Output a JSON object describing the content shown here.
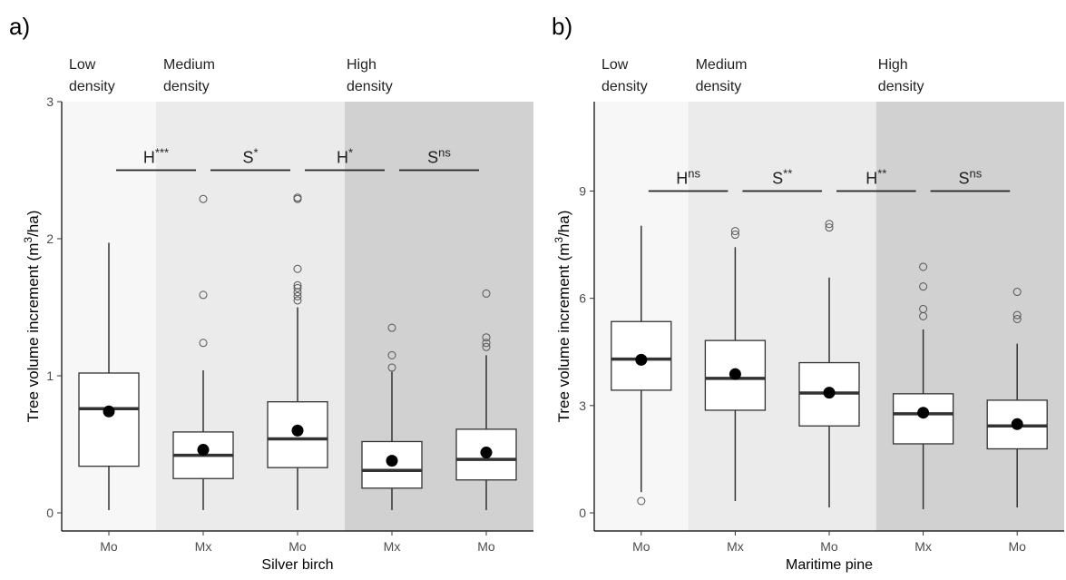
{
  "chart_data": [
    {
      "panel_label": "a)",
      "type": "box",
      "xlabel": "Silver birch",
      "ylabel": "Tree volume increment (m³/ha)",
      "ylabel_parts": {
        "pre": "Tree volume increment (m",
        "sup": "3",
        "post": "/ha)"
      },
      "ylim": [
        0,
        3
      ],
      "yticks": [
        "0",
        "1",
        "2",
        "3"
      ],
      "ytick_values": [
        0,
        1,
        2,
        3
      ],
      "categories": [
        "Mo",
        "Mx",
        "Mo",
        "Mx",
        "Mo"
      ],
      "density_zones": [
        {
          "line1": "Low",
          "line2": "density",
          "color": "#f7f7f7",
          "from": 0,
          "to": 1
        },
        {
          "line1": "Medium",
          "line2": "density",
          "color": "#ebebeb",
          "from": 1,
          "to": 3
        },
        {
          "line1": "High",
          "line2": "density",
          "color": "#d1d1d1",
          "from": 3,
          "to": 5
        }
      ],
      "boxes": [
        {
          "q1": 0.34,
          "median": 0.76,
          "q3": 1.02,
          "lower": 0.02,
          "upper": 1.97,
          "mean": 0.74,
          "outliers": []
        },
        {
          "q1": 0.25,
          "median": 0.42,
          "q3": 0.59,
          "lower": 0.02,
          "upper": 1.04,
          "mean": 0.46,
          "outliers": [
            1.24,
            1.59,
            2.29
          ]
        },
        {
          "q1": 0.33,
          "median": 0.54,
          "q3": 0.81,
          "lower": 0.02,
          "upper": 1.5,
          "mean": 0.6,
          "outliers": [
            1.55,
            1.58,
            1.61,
            1.64,
            1.66,
            1.78,
            2.29,
            2.3
          ]
        },
        {
          "q1": 0.18,
          "median": 0.31,
          "q3": 0.52,
          "lower": 0.02,
          "upper": 1.03,
          "mean": 0.38,
          "outliers": [
            1.06,
            1.15,
            1.35
          ]
        },
        {
          "q1": 0.24,
          "median": 0.39,
          "q3": 0.61,
          "lower": 0.02,
          "upper": 1.15,
          "mean": 0.44,
          "outliers": [
            1.21,
            1.24,
            1.28,
            1.6
          ]
        }
      ],
      "significance": [
        {
          "label": "H",
          "sup": "***",
          "y": 2.5
        },
        {
          "label": "S",
          "sup": "*",
          "y": 2.5
        },
        {
          "label": "H",
          "sup": "*",
          "y": 2.5
        },
        {
          "label": "S",
          "sup": "ns",
          "y": 2.5
        }
      ]
    },
    {
      "panel_label": "b)",
      "type": "box",
      "xlabel": "Maritime pine",
      "ylabel": "Tree volume increment (m³/ha)",
      "ylabel_parts": {
        "pre": "Tree volume increment (m",
        "sup": "3",
        "post": "/ha)"
      },
      "ylim": [
        0,
        11.5
      ],
      "yticks": [
        "0",
        "3",
        "6",
        "9"
      ],
      "ytick_values": [
        0,
        3,
        6,
        9
      ],
      "categories": [
        "Mo",
        "Mx",
        "Mo",
        "Mx",
        "Mo"
      ],
      "density_zones": [
        {
          "line1": "Low",
          "line2": "density",
          "color": "#f7f7f7",
          "from": 0,
          "to": 1
        },
        {
          "line1": "Medium",
          "line2": "density",
          "color": "#ebebeb",
          "from": 1,
          "to": 3
        },
        {
          "line1": "High",
          "line2": "density",
          "color": "#d1d1d1",
          "from": 3,
          "to": 5
        }
      ],
      "boxes": [
        {
          "q1": 3.43,
          "median": 4.3,
          "q3": 5.35,
          "lower": 0.58,
          "upper": 8.03,
          "mean": 4.28,
          "outliers": [
            0.33
          ]
        },
        {
          "q1": 2.87,
          "median": 3.76,
          "q3": 4.82,
          "lower": 0.33,
          "upper": 7.43,
          "mean": 3.88,
          "outliers": [
            7.78,
            7.88
          ]
        },
        {
          "q1": 2.43,
          "median": 3.35,
          "q3": 4.2,
          "lower": 0.15,
          "upper": 6.58,
          "mean": 3.36,
          "outliers": [
            7.98,
            8.08
          ]
        },
        {
          "q1": 1.93,
          "median": 2.77,
          "q3": 3.33,
          "lower": 0.1,
          "upper": 5.13,
          "mean": 2.8,
          "outliers": [
            5.5,
            5.7,
            6.33,
            6.88
          ]
        },
        {
          "q1": 1.79,
          "median": 2.43,
          "q3": 3.15,
          "lower": 0.15,
          "upper": 4.73,
          "mean": 2.48,
          "outliers": [
            5.42,
            5.53,
            6.18
          ]
        }
      ],
      "significance": [
        {
          "label": "H",
          "sup": "ns",
          "y": 9.0
        },
        {
          "label": "S",
          "sup": "**",
          "y": 9.0
        },
        {
          "label": "H",
          "sup": "**",
          "y": 9.0
        },
        {
          "label": "S",
          "sup": "ns",
          "y": 9.0
        }
      ]
    }
  ]
}
